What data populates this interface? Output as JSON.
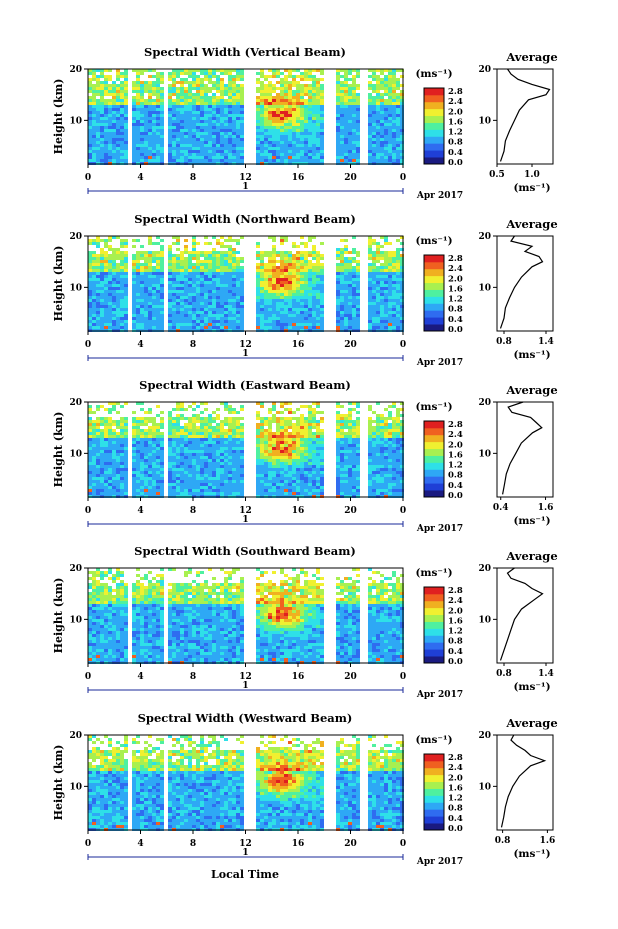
{
  "figure": {
    "x_axis_label": "Local Time",
    "date_label": "Apr 2017",
    "day_marker": "1",
    "y_axis_label": "Height (km)",
    "colorbar_unit": "(ms⁻¹)",
    "avg_title": "Average",
    "avg_unit": "(ms⁻¹)",
    "x_ticks": [
      "0",
      "4",
      "8",
      "12",
      "16",
      "20",
      "0"
    ],
    "y_ticks": [
      "10",
      "20"
    ],
    "colorbar_ticks": [
      "0.0",
      "0.4",
      "0.8",
      "1.2",
      "1.6",
      "2.0",
      "2.4",
      "2.8"
    ],
    "colormap": [
      "#1a1a80",
      "#1f3fd6",
      "#2f6cf0",
      "#2ea8f5",
      "#2ee0e8",
      "#4ef0a0",
      "#a8f050",
      "#f0f030",
      "#f0b020",
      "#f06020",
      "#e02020"
    ]
  },
  "chart_data": [
    {
      "type": "heatmap",
      "title": "Spectral Width (Vertical Beam)",
      "x_range_hours": [
        0,
        24
      ],
      "y_range_km": [
        1.5,
        20
      ],
      "color_range": [
        0.0,
        3.0
      ],
      "data_gaps_hours": [
        [
          3.1,
          3.4
        ],
        [
          3.6,
          3.8
        ],
        [
          5.7,
          6.1
        ],
        [
          11.8,
          12.9
        ],
        [
          18.1,
          19.0
        ],
        [
          20.8,
          21.2
        ]
      ],
      "average_profile": {
        "x_ticks": [
          "0.5",
          "1.0"
        ],
        "x_range": [
          0.5,
          1.3
        ],
        "height_km": [
          2,
          4,
          6,
          8,
          10,
          12,
          14,
          15,
          16,
          17,
          18,
          19,
          20
        ],
        "width": [
          0.55,
          0.6,
          0.62,
          0.68,
          0.75,
          0.82,
          0.95,
          1.2,
          1.25,
          1.0,
          0.8,
          0.7,
          0.65
        ]
      }
    },
    {
      "type": "heatmap",
      "title": "Spectral Width (Northward Beam)",
      "x_range_hours": [
        0,
        24
      ],
      "y_range_km": [
        1.5,
        20
      ],
      "color_range": [
        0.0,
        3.0
      ],
      "data_gaps_hours": [
        [
          3.1,
          3.4
        ],
        [
          3.6,
          3.8
        ],
        [
          5.7,
          6.1
        ],
        [
          11.8,
          12.9
        ],
        [
          18.1,
          19.0
        ],
        [
          20.8,
          21.2
        ]
      ],
      "average_profile": {
        "x_ticks": [
          "0.8",
          "1.4"
        ],
        "x_range": [
          0.7,
          1.5
        ],
        "height_km": [
          2,
          4,
          6,
          8,
          10,
          12,
          14,
          15,
          16,
          17,
          18,
          19,
          20
        ],
        "width": [
          0.75,
          0.8,
          0.82,
          0.88,
          0.95,
          1.05,
          1.2,
          1.35,
          1.3,
          1.1,
          1.2,
          0.9,
          0.95
        ]
      }
    },
    {
      "type": "heatmap",
      "title": "Spectral Width (Eastward Beam)",
      "x_range_hours": [
        0,
        24
      ],
      "y_range_km": [
        1.5,
        20
      ],
      "color_range": [
        0.0,
        3.0
      ],
      "data_gaps_hours": [
        [
          3.1,
          3.4
        ],
        [
          3.6,
          3.8
        ],
        [
          5.7,
          6.1
        ],
        [
          11.8,
          12.9
        ],
        [
          18.1,
          19.0
        ],
        [
          20.8,
          21.2
        ]
      ],
      "average_profile": {
        "x_ticks": [
          "0.4",
          "1.6"
        ],
        "x_range": [
          0.3,
          1.8
        ],
        "height_km": [
          2,
          4,
          6,
          8,
          10,
          12,
          14,
          15,
          16,
          17,
          18,
          19,
          20
        ],
        "width": [
          0.45,
          0.5,
          0.55,
          0.65,
          0.8,
          0.95,
          1.25,
          1.5,
          1.35,
          1.2,
          0.7,
          0.6,
          1.0
        ]
      }
    },
    {
      "type": "heatmap",
      "title": "Spectral Width (Southward Beam)",
      "x_range_hours": [
        0,
        24
      ],
      "y_range_km": [
        1.5,
        20
      ],
      "color_range": [
        0.0,
        3.0
      ],
      "data_gaps_hours": [
        [
          3.1,
          3.4
        ],
        [
          3.6,
          3.8
        ],
        [
          5.7,
          6.1
        ],
        [
          11.8,
          12.9
        ],
        [
          18.1,
          19.0
        ],
        [
          20.8,
          21.2
        ]
      ],
      "average_profile": {
        "x_ticks": [
          "0.8",
          "1.4"
        ],
        "x_range": [
          0.7,
          1.5
        ],
        "height_km": [
          2,
          4,
          6,
          8,
          10,
          12,
          14,
          15,
          16,
          17,
          18,
          19,
          20
        ],
        "width": [
          0.75,
          0.8,
          0.85,
          0.9,
          0.95,
          1.05,
          1.25,
          1.35,
          1.2,
          1.1,
          0.9,
          0.85,
          0.95
        ]
      }
    },
    {
      "type": "heatmap",
      "title": "Spectral Width (Westward Beam)",
      "x_range_hours": [
        0,
        24
      ],
      "y_range_km": [
        1.5,
        20
      ],
      "color_range": [
        0.0,
        3.0
      ],
      "data_gaps_hours": [
        [
          3.1,
          3.4
        ],
        [
          3.6,
          3.8
        ],
        [
          5.7,
          6.1
        ],
        [
          11.8,
          12.9
        ],
        [
          18.1,
          19.0
        ],
        [
          20.8,
          21.2
        ]
      ],
      "average_profile": {
        "x_ticks": [
          "0.8",
          "1.6"
        ],
        "x_range": [
          0.7,
          1.7
        ],
        "height_km": [
          2,
          4,
          6,
          8,
          10,
          12,
          14,
          15,
          16,
          17,
          18,
          19,
          20
        ],
        "width": [
          0.78,
          0.82,
          0.85,
          0.9,
          0.98,
          1.1,
          1.3,
          1.55,
          1.3,
          1.2,
          1.05,
          0.95,
          1.0
        ]
      }
    }
  ]
}
